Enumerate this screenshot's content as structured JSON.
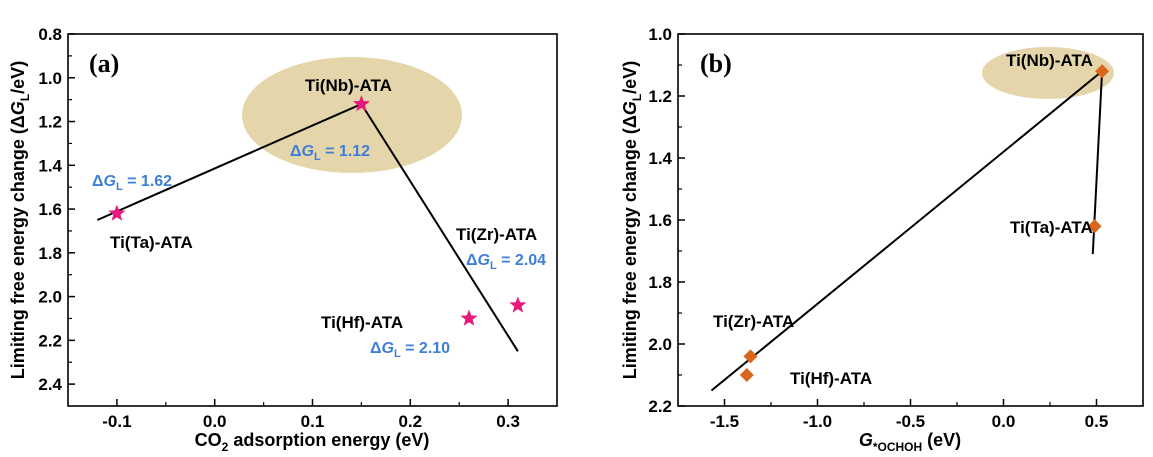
{
  "chart_data": [
    {
      "panel_label": "(a)",
      "type": "scatter",
      "marker": "star",
      "marker_color": "#e8197d",
      "xlabel": "CO2 adsorption energy (eV)",
      "xlabel_parts": {
        "pre": "CO",
        "sub": "2",
        "post": " adsorption energy (eV)"
      },
      "ylabel": "Limiting free energy change (ΔGL/eV)",
      "ylabel_parts": {
        "pre": "Limiting free energy change (Δ",
        "var": "G",
        "sub": "L",
        "post": "/eV)"
      },
      "xlim": [
        -0.15,
        0.35
      ],
      "ylim": [
        2.5,
        0.8
      ],
      "y_inverted": true,
      "x_ticks": [
        -0.1,
        0.0,
        0.1,
        0.2,
        0.3
      ],
      "x_tick_labels": [
        "-0.1",
        "0.0",
        "0.1",
        "0.2",
        "0.3"
      ],
      "y_ticks": [
        0.8,
        1.0,
        1.2,
        1.4,
        1.6,
        1.8,
        2.0,
        2.2,
        2.4
      ],
      "y_tick_labels": [
        "0.8",
        "1.0",
        "1.2",
        "1.4",
        "1.6",
        "1.8",
        "2.0",
        "2.2",
        "2.4"
      ],
      "points": [
        {
          "name": "Ti(Ta)-ATA",
          "x": -0.1,
          "y": 1.62
        },
        {
          "name": "Ti(Nb)-ATA",
          "x": 0.15,
          "y": 1.12
        },
        {
          "name": "Ti(Hf)-ATA",
          "x": 0.26,
          "y": 2.1
        },
        {
          "name": "Ti(Zr)-ATA",
          "x": 0.31,
          "y": 2.04
        }
      ],
      "annotations": [
        {
          "text": "ΔGL = 1.62",
          "parts": {
            "pre": "Δ",
            "var": "G",
            "sub": "L",
            "post": " = 1.62"
          }
        },
        {
          "text": "ΔGL = 1.12",
          "parts": {
            "pre": "Δ",
            "var": "G",
            "sub": "L",
            "post": " = 1.12"
          }
        },
        {
          "text": "ΔGL = 2.04",
          "parts": {
            "pre": "Δ",
            "var": "G",
            "sub": "L",
            "post": " = 2.04"
          }
        },
        {
          "text": "ΔGL = 2.10",
          "parts": {
            "pre": "Δ",
            "var": "G",
            "sub": "L",
            "post": " = 2.10"
          }
        }
      ],
      "volcano_lines": [
        [
          [
            -0.12,
            1.65
          ],
          [
            0.15,
            1.12
          ]
        ],
        [
          [
            0.15,
            1.12
          ],
          [
            0.31,
            2.25
          ]
        ]
      ],
      "highlight_color": "#ddcc95",
      "grid": false
    },
    {
      "panel_label": "(b)",
      "type": "scatter",
      "marker": "diamond",
      "marker_color": "#d9661a",
      "xlabel": "G*OCHOH (eV)",
      "xlabel_parts": {
        "var": "G",
        "sub": "*OCHOH",
        "post": " (eV)"
      },
      "ylabel": "Limiting free energy change (ΔGL/eV)",
      "ylabel_parts": {
        "pre": "Limiting free energy change (Δ",
        "var": "G",
        "sub": "L",
        "post": "/eV)"
      },
      "xlim": [
        -1.75,
        0.75
      ],
      "ylim": [
        2.2,
        1.0
      ],
      "y_inverted": true,
      "x_ticks": [
        -1.5,
        -1.0,
        -0.5,
        0.0,
        0.5
      ],
      "x_tick_labels": [
        "-1.5",
        "-1.0",
        "-0.5",
        "0.0",
        "0.5"
      ],
      "y_ticks": [
        1.0,
        1.2,
        1.4,
        1.6,
        1.8,
        2.0,
        2.2
      ],
      "y_tick_labels": [
        "1.0",
        "1.2",
        "1.4",
        "1.6",
        "1.8",
        "2.0",
        "2.2"
      ],
      "points": [
        {
          "name": "Ti(Nb)-ATA",
          "x": 0.53,
          "y": 1.12
        },
        {
          "name": "Ti(Ta)-ATA",
          "x": 0.49,
          "y": 1.62
        },
        {
          "name": "Ti(Zr)-ATA",
          "x": -1.36,
          "y": 2.04
        },
        {
          "name": "Ti(Hf)-ATA",
          "x": -1.38,
          "y": 2.1
        }
      ],
      "volcano_lines": [
        [
          [
            -1.57,
            2.15
          ],
          [
            0.53,
            1.12
          ]
        ],
        [
          [
            0.53,
            1.12
          ],
          [
            0.48,
            1.71
          ]
        ]
      ],
      "highlight_color": "#ddcc95",
      "grid": false
    }
  ]
}
